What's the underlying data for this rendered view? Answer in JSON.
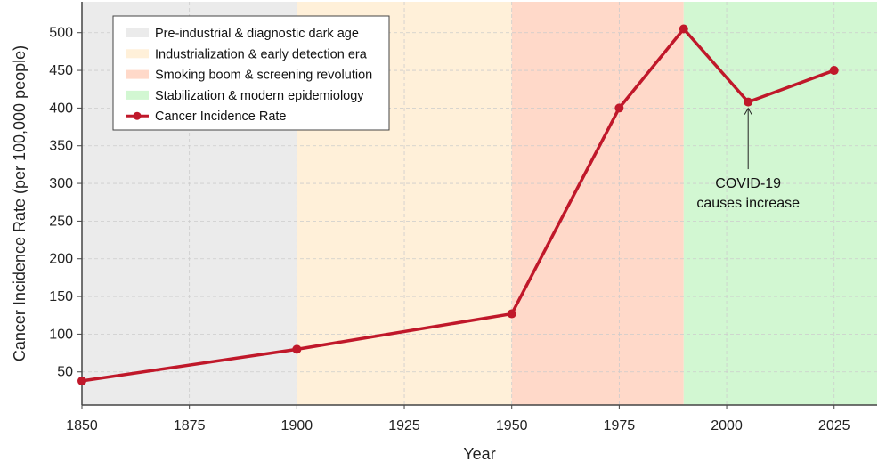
{
  "chart_data": {
    "type": "line",
    "title": "",
    "xlabel": "Year",
    "ylabel": "Cancer Incidence Rate (per 100,000 people)",
    "xlim": [
      1850,
      2035
    ],
    "ylim": [
      6,
      541
    ],
    "grid": true,
    "legend_placement": "top-left",
    "x_ticks": [
      1850,
      1875,
      1900,
      1925,
      1950,
      1975,
      2000,
      2025
    ],
    "y_ticks": [
      50,
      100,
      150,
      200,
      250,
      300,
      350,
      400,
      450,
      500
    ],
    "bands": [
      {
        "label": "Pre-industrial & diagnostic dark age",
        "from": 1850,
        "to": 1900,
        "color": "#ebebeb"
      },
      {
        "label": "Industrialization & early detection era",
        "from": 1900,
        "to": 1950,
        "color": "#fff0d9"
      },
      {
        "label": "Smoking boom & screening revolution",
        "from": 1950,
        "to": 1990,
        "color": "#ffd9c9"
      },
      {
        "label": "Stabilization & modern epidemiology",
        "from": 1990,
        "to": 2035,
        "color": "#d2f7d2"
      }
    ],
    "series": [
      {
        "name": "Cancer Incidence Rate",
        "color": "#c0182a",
        "x": [
          1850,
          1900,
          1950,
          1975,
          1990,
          2005,
          2025
        ],
        "y": [
          38,
          80,
          127,
          400,
          505,
          408,
          450
        ]
      }
    ],
    "annotations": [
      {
        "lines": [
          "COVID-19",
          "causes increase"
        ],
        "x": 2005,
        "y": 408,
        "text_y": 300
      }
    ]
  }
}
